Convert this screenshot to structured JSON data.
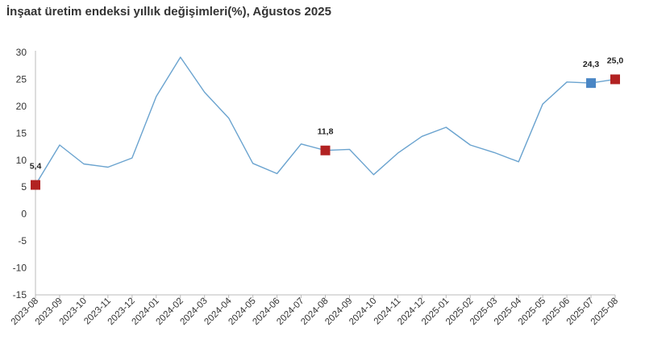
{
  "title": "İnşaat üretim endeksi yıllık değişimleri(%), Ağustos 2025",
  "chart_data": {
    "type": "line",
    "title": "İnşaat üretim endeksi yıllık değişimleri(%), Ağustos 2025",
    "xlabel": "",
    "ylabel": "",
    "ylim": [
      -15,
      30
    ],
    "yticks": [
      30,
      25,
      20,
      15,
      10,
      5,
      0,
      -5,
      -10,
      -15
    ],
    "grid": false,
    "legend": "none",
    "categories": [
      "2023-08",
      "2023-09",
      "2023-10",
      "2023-11",
      "2023-12",
      "2024-01",
      "2024-02",
      "2024-03",
      "2024-04",
      "2024-05",
      "2024-06",
      "2024-07",
      "2024-08",
      "2024-09",
      "2024-10",
      "2024-11",
      "2024-12",
      "2025-01",
      "2025-02",
      "2025-03",
      "2025-04",
      "2025-05",
      "2025-06",
      "2025-07",
      "2025-08"
    ],
    "series": [
      {
        "values": [
          5.4,
          12.8,
          9.3,
          8.7,
          10.4,
          21.8,
          29.1,
          22.6,
          17.8,
          9.4,
          7.5,
          13.0,
          11.8,
          12.0,
          7.3,
          11.3,
          14.4,
          16.1,
          12.8,
          11.4,
          9.7,
          20.4,
          24.5,
          24.3,
          25.0
        ]
      }
    ],
    "markers": [
      {
        "category": "2023-08",
        "value": 5.4,
        "label": "5,4",
        "color": "#b22222"
      },
      {
        "category": "2024-08",
        "value": 11.8,
        "label": "11,8",
        "color": "#b22222"
      },
      {
        "category": "2025-07",
        "value": 24.3,
        "label": "24,3",
        "color": "#4a86c5"
      },
      {
        "category": "2025-08",
        "value": 25.0,
        "label": "25,0",
        "color": "#b22222"
      }
    ],
    "line_color": "#6aa3cf"
  }
}
